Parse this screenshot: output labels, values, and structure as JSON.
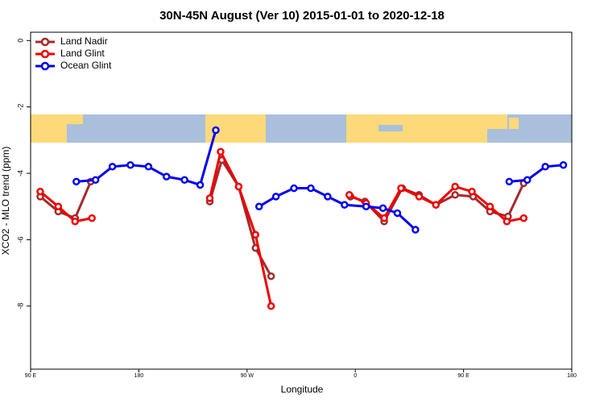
{
  "chart_data": {
    "type": "line",
    "title": "30N-45N August (Ver 10)   2015-01-01 to 2020-12-18",
    "x_label": "Longitude",
    "y_label": "XCO2 - MLO trend (ppm)",
    "xlim": [
      90,
      540
    ],
    "xticks": [
      {
        "value": 90,
        "label": "90 E"
      },
      180,
      {
        "value": 270,
        "label": "90 W"
      },
      {
        "value": 360,
        "label": "0"
      },
      {
        "value": 450,
        "label": "90 E"
      },
      {
        "value": 540,
        "label": "180"
      }
    ],
    "ylim": [
      -9.9,
      0.25
    ],
    "yticks": [
      0,
      -2,
      -4,
      -6,
      -8
    ],
    "legend": "top-left",
    "series": [
      {
        "name": "Land Nadir",
        "color": "#a52a2a",
        "x": [
          98,
          113,
          127,
          140,
          null,
          239,
          249,
          263,
          277,
          290,
          null,
          356,
          368,
          384,
          399,
          413,
          427,
          443,
          458,
          472,
          487,
          500
        ],
        "values": [
          -4.7,
          -5.15,
          -5.35,
          -4.25,
          null,
          -4.85,
          -3.6,
          -4.4,
          -6.25,
          -7.1,
          null,
          -4.7,
          -4.85,
          -5.45,
          -4.45,
          -4.65,
          -4.95,
          -4.65,
          -4.7,
          -5.15,
          -5.3,
          -4.3
        ]
      },
      {
        "name": "Land Glint",
        "color": "#ee0000",
        "x": [
          98,
          113,
          127,
          141,
          null,
          239,
          248,
          263,
          277,
          290,
          null,
          355,
          369,
          384,
          398,
          413,
          427,
          443,
          457,
          472,
          486,
          500
        ],
        "values": [
          -4.55,
          -5.0,
          -5.45,
          -5.35,
          null,
          -4.75,
          -3.35,
          -4.4,
          -5.85,
          -8.0,
          null,
          -4.65,
          -4.9,
          -5.35,
          -4.45,
          -4.7,
          -4.95,
          -4.4,
          -4.55,
          -5.0,
          -5.45,
          -5.35
        ]
      },
      {
        "name": "Ocean Glint",
        "color": "#0000ee",
        "x": [
          128,
          144,
          158,
          173,
          188,
          203,
          218,
          231,
          244,
          null,
          280,
          294,
          309,
          323,
          337,
          351,
          369,
          383,
          395,
          410,
          null,
          488,
          503,
          518,
          533
        ],
        "values": [
          -4.25,
          -4.2,
          -3.8,
          -3.75,
          -3.8,
          -4.1,
          -4.2,
          -4.35,
          -2.7,
          null,
          -5.0,
          -4.7,
          -4.45,
          -4.45,
          -4.7,
          -4.95,
          -5.0,
          -5.05,
          -5.2,
          -5.7,
          null,
          -4.25,
          -4.2,
          -3.8,
          -3.75
        ]
      }
    ]
  }
}
